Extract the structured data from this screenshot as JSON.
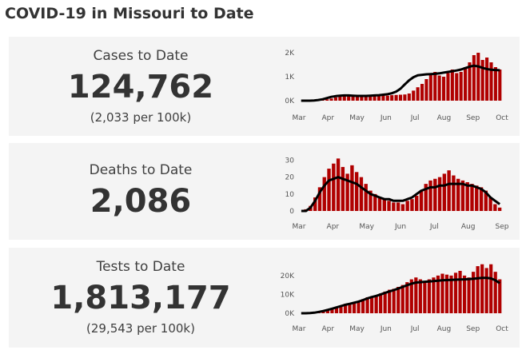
{
  "page_title": "COVID-19 in Missouri to Date",
  "colors": {
    "bar": "#b00000",
    "avg_line": "#000000",
    "panel_bg": "#f4f4f4"
  },
  "panels": [
    {
      "label": "Cases to Date",
      "value": "124,762",
      "sub": "(2,033 per 100k)"
    },
    {
      "label": "Deaths to Date",
      "value": "2,086",
      "sub": ""
    },
    {
      "label": "Tests to Date",
      "value": "1,813,177",
      "sub": "(29,543 per 100k)"
    }
  ],
  "chart_data": [
    {
      "type": "bar",
      "title": "",
      "x_ticks": [
        "Mar",
        "Apr",
        "May",
        "Jun",
        "Jul",
        "Aug",
        "Sep",
        "Oct"
      ],
      "y_ticks": [
        "0K",
        "1K",
        "2K"
      ],
      "ylim": [
        0,
        2200
      ],
      "series": [
        {
          "values": [
            0,
            0,
            0,
            10,
            20,
            40,
            60,
            90,
            140,
            180,
            200,
            240,
            220,
            200,
            190,
            180,
            200,
            210,
            200,
            220,
            210,
            230,
            240,
            250,
            260,
            300,
            420,
            560,
            700,
            900,
            1100,
            1200,
            1050,
            1000,
            1150,
            1300,
            1150,
            1200,
            1400,
            1600,
            1900,
            2000,
            1700,
            1800,
            1600,
            1400,
            1300
          ]
        },
        {
          "values": [
            0,
            0,
            0,
            10,
            30,
            60,
            110,
            160,
            190,
            210,
            220,
            220,
            210,
            200,
            200,
            200,
            210,
            220,
            230,
            250,
            270,
            310,
            380,
            500,
            680,
            850,
            980,
            1060,
            1080,
            1100,
            1110,
            1120,
            1140,
            1170,
            1200,
            1230,
            1260,
            1300,
            1360,
            1420,
            1460,
            1430,
            1370,
            1320,
            1290,
            1280,
            1270
          ],
          "line": true
        }
      ]
    },
    {
      "type": "bar",
      "title": "",
      "x_ticks": [
        "Mar",
        "Apr",
        "May",
        "Jun",
        "Jul",
        "Aug",
        "Sep"
      ],
      "y_ticks": [
        "0",
        "10",
        "20",
        "30"
      ],
      "ylim": [
        0,
        34
      ],
      "series": [
        {
          "values": [
            0,
            1,
            3,
            8,
            14,
            20,
            25,
            28,
            31,
            26,
            22,
            27,
            23,
            20,
            16,
            12,
            10,
            8,
            7,
            6,
            5,
            5,
            4,
            6,
            7,
            9,
            12,
            16,
            18,
            19,
            20,
            22,
            24,
            21,
            19,
            18,
            17,
            16,
            15,
            14,
            12,
            8,
            4,
            2
          ]
        },
        {
          "values": [
            0,
            0,
            2,
            6,
            11,
            15,
            18,
            19,
            20,
            19,
            18,
            17,
            16,
            14,
            12,
            10,
            9,
            8,
            7,
            7,
            6,
            6,
            6,
            7,
            8,
            10,
            12,
            13,
            14,
            14,
            15,
            15,
            16,
            16,
            16,
            16,
            15,
            15,
            14,
            13,
            11,
            8,
            6,
            4
          ],
          "line": true
        }
      ]
    },
    {
      "type": "bar",
      "title": "",
      "x_ticks": [
        "Mar",
        "Apr",
        "May",
        "Jun",
        "Jul",
        "Aug",
        "Sep",
        "Oct"
      ],
      "y_ticks": [
        "0K",
        "10K",
        "20K"
      ],
      "ylim": [
        0,
        28000
      ],
      "series": [
        {
          "values": [
            0,
            0,
            200,
            500,
            900,
            1500,
            2200,
            2800,
            3500,
            4200,
            5000,
            5500,
            6000,
            6500,
            7500,
            8500,
            9000,
            9500,
            10500,
            11500,
            12500,
            13000,
            14000,
            15000,
            16500,
            18000,
            19000,
            18000,
            17000,
            18000,
            19000,
            20000,
            21000,
            20500,
            20000,
            21500,
            22500,
            20000,
            19000,
            22000,
            25000,
            26000,
            24000,
            26000,
            22000,
            18000
          ]
        },
        {
          "values": [
            0,
            0,
            100,
            300,
            700,
            1200,
            1800,
            2400,
            3100,
            3800,
            4500,
            5000,
            5600,
            6200,
            7000,
            7900,
            8600,
            9200,
            10000,
            10800,
            11600,
            12300,
            13100,
            14000,
            14900,
            15700,
            16300,
            16500,
            16700,
            16900,
            17100,
            17300,
            17500,
            17600,
            17700,
            17800,
            17900,
            18000,
            18100,
            18300,
            18600,
            18800,
            18800,
            18500,
            17500,
            16000
          ],
          "line": true
        }
      ]
    }
  ]
}
